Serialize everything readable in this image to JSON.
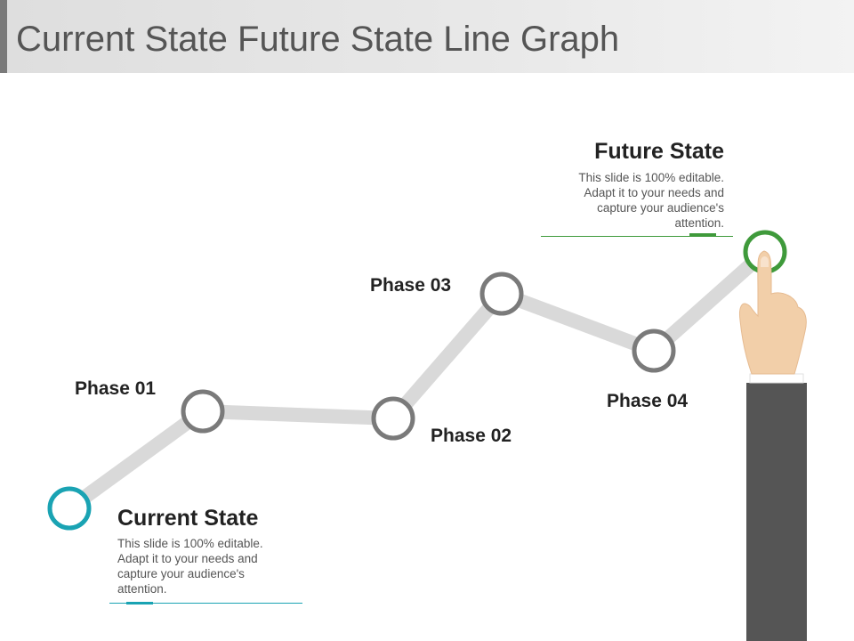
{
  "title": "Current State Future State Line Graph",
  "colors": {
    "current_ring": "#1aa3b3",
    "future_ring": "#3f9a3b",
    "phase_ring": "#7a7a7a",
    "connector": "#d9d9d9",
    "sleeve": "#555555",
    "skin": "#f2cfa9"
  },
  "nodes": {
    "current": {
      "label": "Current State",
      "description": "This slide is 100% editable. Adapt it to your needs and capture your audience's attention."
    },
    "phase1": {
      "label": "Phase 01"
    },
    "phase2": {
      "label": "Phase 02"
    },
    "phase3": {
      "label": "Phase 03"
    },
    "phase4": {
      "label": "Phase 04"
    },
    "future": {
      "label": "Future State",
      "description": "This slide is 100% editable. Adapt it to your needs and capture your audience's attention."
    }
  },
  "icons": {
    "hand": "pointing-hand-icon"
  }
}
